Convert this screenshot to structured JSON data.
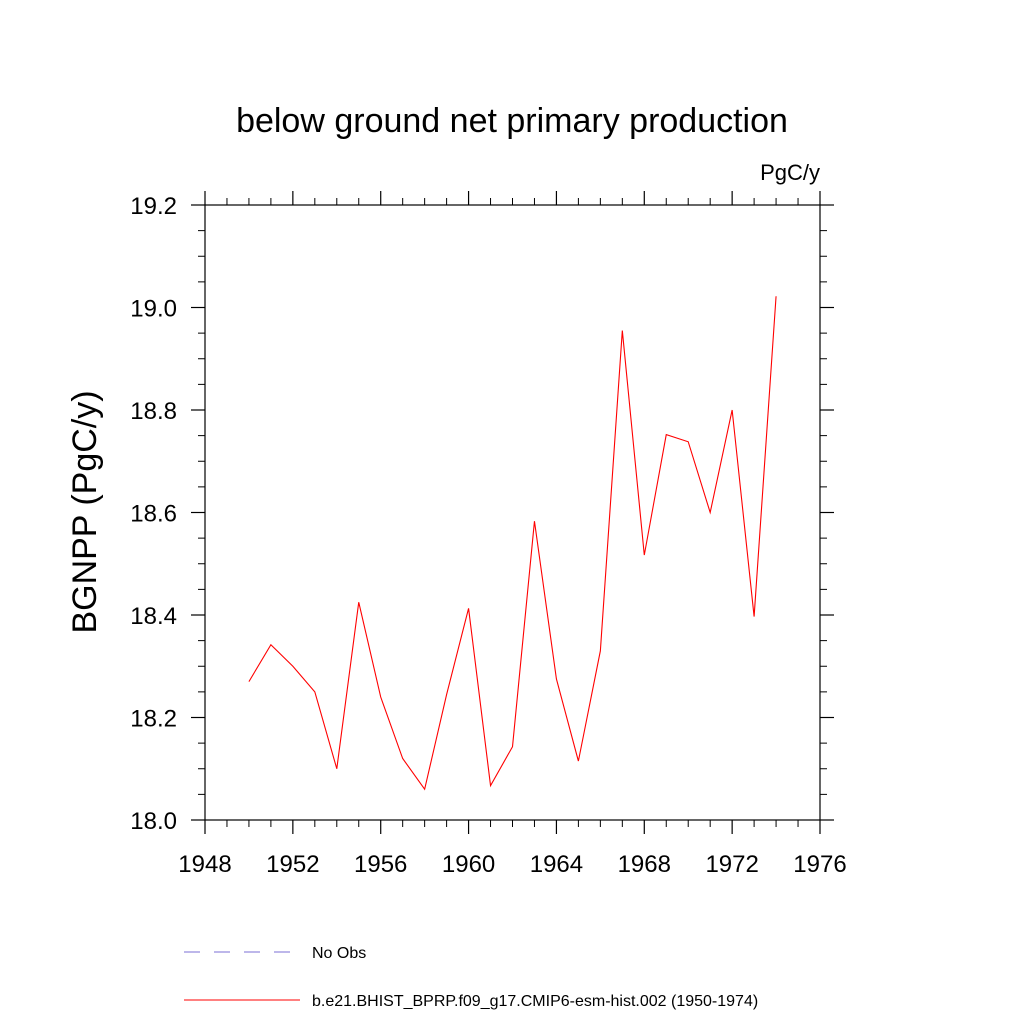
{
  "chart_data": {
    "type": "line",
    "title": "below ground net primary production",
    "units_label": "PgC/y",
    "ylabel": "BGNPP  (PgC/y)",
    "xlabel": "",
    "xlim": [
      1948,
      1976
    ],
    "ylim": [
      18.0,
      19.2
    ],
    "x_ticks": [
      1948,
      1952,
      1956,
      1960,
      1964,
      1968,
      1972,
      1976
    ],
    "x_tick_labels": [
      "1948",
      "1952",
      "1956",
      "1960",
      "1964",
      "1968",
      "1972",
      "1976"
    ],
    "y_ticks": [
      18.0,
      18.2,
      18.4,
      18.6,
      18.8,
      19.0,
      19.2
    ],
    "y_tick_labels": [
      "18.0",
      "18.2",
      "18.4",
      "18.6",
      "18.8",
      "19.0",
      "19.2"
    ],
    "series": [
      {
        "name": "b.e21.BHIST_BPRP.f09_g17.CMIP6-esm-hist.002 (1950-1974)",
        "color": "#ff0000",
        "x": [
          1950,
          1951,
          1952,
          1953,
          1954,
          1955,
          1956,
          1957,
          1958,
          1959,
          1960,
          1961,
          1962,
          1963,
          1964,
          1965,
          1966,
          1967,
          1968,
          1969,
          1970,
          1971,
          1972,
          1973,
          1974
        ],
        "values": [
          18.27,
          18.342,
          18.3,
          18.25,
          18.1,
          18.425,
          18.24,
          18.12,
          18.06,
          18.245,
          18.413,
          18.067,
          18.143,
          18.583,
          18.275,
          18.115,
          18.33,
          18.955,
          18.517,
          18.752,
          18.738,
          18.6,
          18.8,
          18.397,
          19.022
        ]
      }
    ],
    "legend": {
      "placement": "bottom",
      "entries": [
        {
          "label": "No Obs",
          "color": "#7b6fd6",
          "style": "dashed"
        },
        {
          "label": "b.e21.BHIST_BPRP.f09_g17.CMIP6-esm-hist.002 (1950-1974)",
          "color": "#ff0000",
          "style": "solid"
        }
      ]
    }
  }
}
